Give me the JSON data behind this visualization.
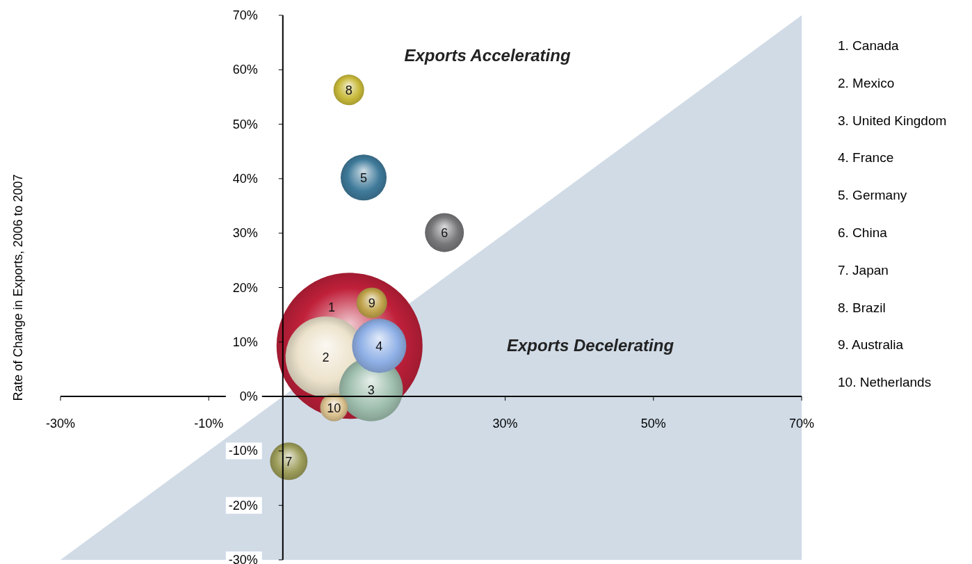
{
  "chart_data": {
    "type": "bubble",
    "ylabel": "Rate of Change in Exports, 2006 to 2007",
    "xlim": [
      -30,
      70
    ],
    "ylim": [
      -30,
      70
    ],
    "xticks": [
      {
        "value": -30,
        "label": "-30%"
      },
      {
        "value": -10,
        "label": "-10%"
      },
      {
        "value": 30,
        "label": "30%"
      },
      {
        "value": 50,
        "label": "50%"
      },
      {
        "value": 70,
        "label": "70%"
      }
    ],
    "yticks": [
      {
        "value": -30,
        "label": "-30%"
      },
      {
        "value": -20,
        "label": "-20%"
      },
      {
        "value": -10,
        "label": "-10%"
      },
      {
        "value": 0,
        "label": "0%"
      },
      {
        "value": 10,
        "label": "10%"
      },
      {
        "value": 20,
        "label": "20%"
      },
      {
        "value": 30,
        "label": "30%"
      },
      {
        "value": 40,
        "label": "40%"
      },
      {
        "value": 50,
        "label": "50%"
      },
      {
        "value": 60,
        "label": "60%"
      },
      {
        "value": 70,
        "label": "70%"
      }
    ],
    "series": [
      {
        "type": "area",
        "color": "#d0dbe6",
        "x": [
          -30,
          70
        ],
        "values": [
          -30,
          70
        ]
      },
      {
        "x": [
          9.0,
          5.8,
          11.9,
          13.0,
          10.9,
          21.8,
          0.8,
          8.9,
          12.0,
          6.9
        ],
        "values": [
          9.3,
          7.3,
          1.3,
          9.3,
          40.2,
          30.1,
          -11.9,
          56.3,
          17.2,
          -2.0
        ],
        "sizes": [
          1,
          0.305,
          0.19,
          0.138,
          0.099,
          0.071,
          0.066,
          0.044,
          0.044,
          0.036
        ],
        "colors": [
          "#c0203a",
          "#ede3cc",
          "#9fbfae",
          "#8fb0e6",
          "#3f7a9a",
          "#77777a",
          "#9c9c5a",
          "#c8b93a",
          "#bfa24a",
          "#d9c08e"
        ]
      }
    ],
    "annotations": [
      "Exports Accelerating",
      "Exports Decelerating",
      "1",
      {
        "text": "2",
        "x": 5.8,
        "y": 7.3
      },
      {
        "text": "3",
        "x": 11.9,
        "y": 1.3
      },
      {
        "text": "4",
        "x": 13.0,
        "y": 9.3
      },
      {
        "text": "5",
        "x": 10.9,
        "y": 40.2
      },
      {
        "text": "6",
        "x": 21.8,
        "y": 30.1
      },
      {
        "text": "7",
        "x": 0.8,
        "y": -11.9
      },
      {
        "text": "8",
        "x": 8.9,
        "y": 56.3
      },
      {
        "text": "9",
        "x": 12.0,
        "y": 17.2
      },
      {
        "text": "10",
        "x": 6.9,
        "y": -2.0
      },
      "1. Canada",
      "2. Mexico",
      "3. United Kingdom",
      "4. France",
      "5. Germany",
      "6. China",
      "7. Japan",
      "8. Brazil",
      "9. Australia",
      "10. Netherlands"
    ]
  }
}
